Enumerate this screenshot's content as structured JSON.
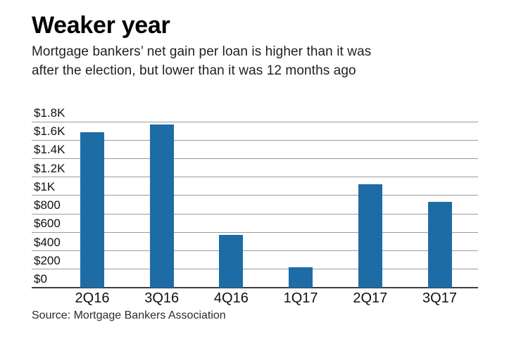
{
  "page": {
    "background": "#ffffff"
  },
  "header": {
    "title": "Weaker year",
    "subtitle_line1": "Mortgage bankers’ net gain per loan is higher than it was",
    "subtitle_line2": "after the election, but lower than it was 12 months ago"
  },
  "chart_data": {
    "type": "bar",
    "title": "Weaker year",
    "subtitle": "Mortgage bankers’ net gain per loan is higher than it was after the election, but lower than it was 12 months ago",
    "categories": [
      "2Q16",
      "3Q16",
      "4Q16",
      "1Q17",
      "2Q17",
      "3Q17"
    ],
    "values": [
      1686,
      1773,
      575,
      224,
      1122,
      929
    ],
    "xlabel": "",
    "ylabel": "",
    "ylim": [
      0,
      1800
    ],
    "yticks": [
      {
        "value": 1800,
        "label": "$1.8K"
      },
      {
        "value": 1600,
        "label": "$1.6K"
      },
      {
        "value": 1400,
        "label": "$1.4K"
      },
      {
        "value": 1200,
        "label": "$1.2K"
      },
      {
        "value": 1000,
        "label": "$1K"
      },
      {
        "value": 800,
        "label": "$800"
      },
      {
        "value": 600,
        "label": "$600"
      },
      {
        "value": 400,
        "label": "$400"
      },
      {
        "value": 200,
        "label": "$200"
      },
      {
        "value": 0,
        "label": "$0"
      }
    ],
    "grid": "horizontal",
    "legend": "none",
    "bar_color": "#1e6ca6",
    "gridline_color": "#9a9a9a",
    "axis_color": "#3f3f3f",
    "text_color": "#111111"
  },
  "footer": {
    "source": "Source: Mortgage Bankers Association"
  }
}
